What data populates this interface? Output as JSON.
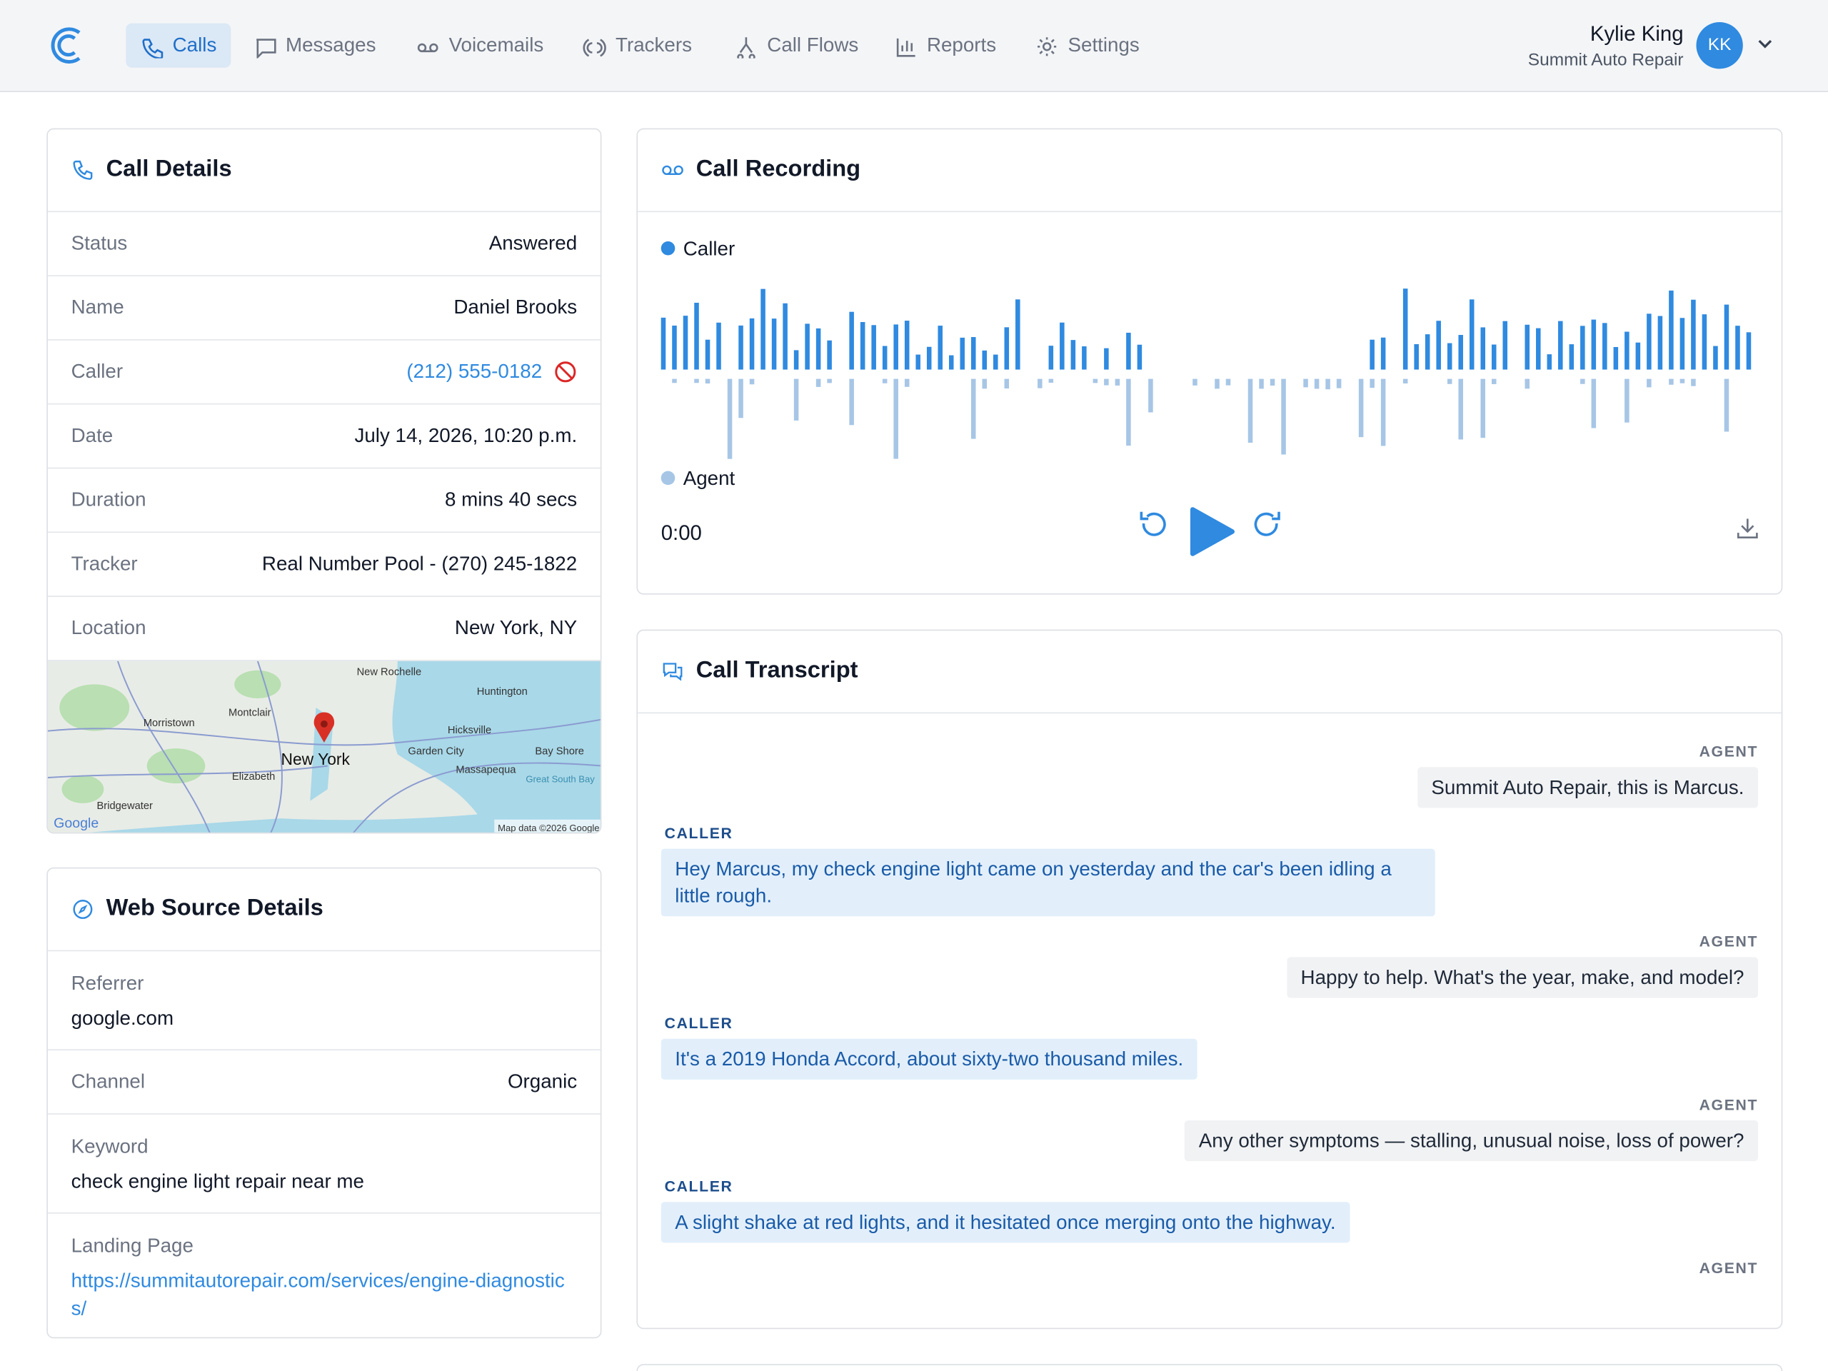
{
  "nav": {
    "items": [
      "Calls",
      "Messages",
      "Voicemails",
      "Trackers",
      "Call Flows",
      "Reports",
      "Settings"
    ],
    "user_name": "Kylie King",
    "org": "Summit Auto Repair",
    "initials": "KK"
  },
  "call_details": {
    "title": "Call Details",
    "rows": [
      [
        "Status",
        "Answered"
      ],
      [
        "Name",
        "Daniel Brooks"
      ],
      [
        "Caller",
        "(212) 555-0182"
      ],
      [
        "Date",
        "July 14, 2026, 10:20 p.m."
      ],
      [
        "Duration",
        "8 mins 40 secs"
      ],
      [
        "Tracker",
        "Real Number Pool - (270) 245-1822"
      ],
      [
        "Location",
        "New York, NY"
      ]
    ],
    "map": {
      "places": [
        "New Rochelle",
        "Huntington",
        "Montclair",
        "Morristown",
        "Hicksville",
        "Garden City",
        "Bay Shore",
        "Massapequa",
        "Elizabeth",
        "Bridgewater",
        "Great South Bay"
      ],
      "city": "New York",
      "brand": "Google",
      "attribution": "Map data ©2026 Google"
    }
  },
  "web_source": {
    "title": "Web Source Details",
    "rows": [
      [
        "Referrer",
        "google.com"
      ],
      [
        "Channel",
        "Organic"
      ],
      [
        "Keyword",
        "check engine light repair near me"
      ],
      [
        "Landing Page",
        "https://summitautorepair.com/services/engine-diagnostics/"
      ]
    ]
  },
  "recording": {
    "title": "Call Recording",
    "legend": [
      "Caller",
      "Agent"
    ],
    "time": "0:00"
  },
  "transcript": {
    "title": "Call Transcript",
    "messages": [
      {
        "speaker": "AGENT",
        "text": "Summit Auto Repair, this is Marcus."
      },
      {
        "speaker": "CALLER",
        "text": "Hey Marcus, my check engine light came on yesterday and the car's been idling a little rough."
      },
      {
        "speaker": "AGENT",
        "text": "Happy to help. What's the year, make, and model?"
      },
      {
        "speaker": "CALLER",
        "text": "It's a 2019 Honda Accord, about sixty-two thousand miles."
      },
      {
        "speaker": "AGENT",
        "text": "Any other symptoms — stalling, unusual noise, loss of power?"
      },
      {
        "speaker": "CALLER",
        "text": "A slight shake at red lights, and it hesitated once merging onto the highway."
      },
      {
        "speaker": "AGENT",
        "text": ""
      }
    ]
  }
}
